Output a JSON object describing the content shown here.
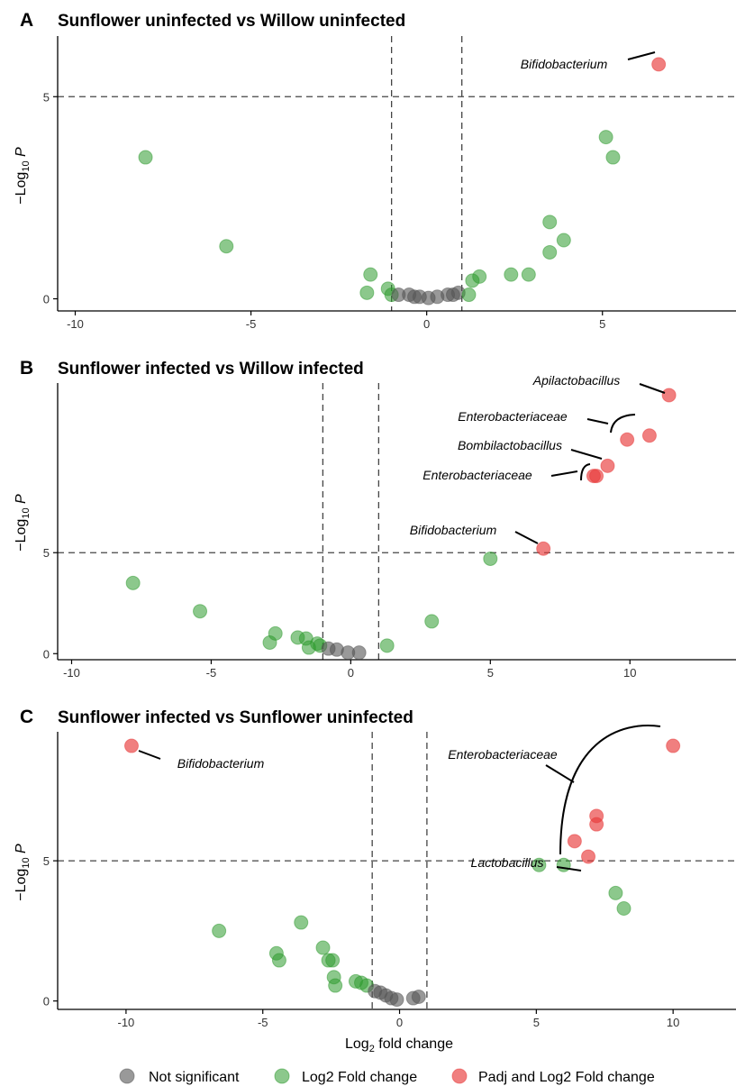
{
  "legend": {
    "items": [
      {
        "key": "ns",
        "label": "Not significant",
        "color": "#555555"
      },
      {
        "key": "fc",
        "label": "Log2 Fold change",
        "color": "#2e9a2e"
      },
      {
        "key": "both",
        "label": "Padj and Log2 Fold change",
        "color": "#e83a3a"
      }
    ]
  },
  "chart_data": [
    {
      "type": "scatter",
      "panel": "A",
      "title": "Sunflower uninfected vs Willow uninfected",
      "ylabel": "−Log10 P",
      "xlabel": "",
      "xlim": [
        -10.5,
        8.8
      ],
      "ylim": [
        -0.3,
        6.5
      ],
      "xticks": [
        -10,
        -5,
        0,
        5
      ],
      "yticks": [
        0,
        5
      ],
      "vlines": [
        -1,
        1
      ],
      "hline": 5,
      "points": [
        {
          "x": -8.0,
          "y": 3.5,
          "g": "fc"
        },
        {
          "x": -5.7,
          "y": 1.3,
          "g": "fc"
        },
        {
          "x": -1.6,
          "y": 0.6,
          "g": "fc"
        },
        {
          "x": -1.7,
          "y": 0.15,
          "g": "fc"
        },
        {
          "x": -1.1,
          "y": 0.25,
          "g": "fc"
        },
        {
          "x": -1.0,
          "y": 0.1,
          "g": "fc"
        },
        {
          "x": -0.8,
          "y": 0.1,
          "g": "ns"
        },
        {
          "x": -0.5,
          "y": 0.1,
          "g": "ns"
        },
        {
          "x": -0.35,
          "y": 0.05,
          "g": "ns"
        },
        {
          "x": -0.2,
          "y": 0.05,
          "g": "ns"
        },
        {
          "x": 0.05,
          "y": 0.02,
          "g": "ns"
        },
        {
          "x": 0.3,
          "y": 0.05,
          "g": "ns"
        },
        {
          "x": 0.6,
          "y": 0.1,
          "g": "ns"
        },
        {
          "x": 0.75,
          "y": 0.1,
          "g": "ns"
        },
        {
          "x": 0.9,
          "y": 0.15,
          "g": "ns"
        },
        {
          "x": 1.2,
          "y": 0.1,
          "g": "fc"
        },
        {
          "x": 1.3,
          "y": 0.45,
          "g": "fc"
        },
        {
          "x": 1.5,
          "y": 0.55,
          "g": "fc"
        },
        {
          "x": 2.4,
          "y": 0.6,
          "g": "fc"
        },
        {
          "x": 2.9,
          "y": 0.6,
          "g": "fc"
        },
        {
          "x": 3.5,
          "y": 1.15,
          "g": "fc"
        },
        {
          "x": 3.5,
          "y": 1.9,
          "g": "fc"
        },
        {
          "x": 3.9,
          "y": 1.45,
          "g": "fc"
        },
        {
          "x": 5.1,
          "y": 4.0,
          "g": "fc"
        },
        {
          "x": 5.3,
          "y": 3.5,
          "g": "fc"
        },
        {
          "x": 6.6,
          "y": 5.8,
          "g": "both"
        }
      ],
      "annotations": [
        {
          "label": "Bifidobacterium",
          "x": 6.6,
          "y": 5.8
        }
      ]
    },
    {
      "type": "scatter",
      "panel": "B",
      "title": "Sunflower infected vs Willow infected",
      "ylabel": "−Log10 P",
      "xlabel": "",
      "xlim": [
        -10.5,
        13.8
      ],
      "ylim": [
        -0.3,
        13.4
      ],
      "xticks": [
        -10,
        -5,
        0,
        5,
        10
      ],
      "yticks": [
        0,
        5
      ],
      "vlines": [
        -1,
        1
      ],
      "hline": 5,
      "points": [
        {
          "x": -7.8,
          "y": 3.5,
          "g": "fc"
        },
        {
          "x": -5.4,
          "y": 2.1,
          "g": "fc"
        },
        {
          "x": -2.9,
          "y": 0.55,
          "g": "fc"
        },
        {
          "x": -2.7,
          "y": 1.0,
          "g": "fc"
        },
        {
          "x": -1.9,
          "y": 0.8,
          "g": "fc"
        },
        {
          "x": -1.6,
          "y": 0.75,
          "g": "fc"
        },
        {
          "x": -1.5,
          "y": 0.3,
          "g": "fc"
        },
        {
          "x": -1.2,
          "y": 0.5,
          "g": "fc"
        },
        {
          "x": -1.1,
          "y": 0.4,
          "g": "fc"
        },
        {
          "x": -0.8,
          "y": 0.25,
          "g": "ns"
        },
        {
          "x": -0.5,
          "y": 0.2,
          "g": "ns"
        },
        {
          "x": -0.1,
          "y": 0.05,
          "g": "ns"
        },
        {
          "x": 0.3,
          "y": 0.05,
          "g": "ns"
        },
        {
          "x": 1.3,
          "y": 0.4,
          "g": "fc"
        },
        {
          "x": 2.9,
          "y": 1.6,
          "g": "fc"
        },
        {
          "x": 5.0,
          "y": 4.7,
          "g": "fc"
        },
        {
          "x": 6.9,
          "y": 5.2,
          "g": "both"
        },
        {
          "x": 8.7,
          "y": 8.8,
          "g": "both"
        },
        {
          "x": 8.8,
          "y": 8.8,
          "g": "both"
        },
        {
          "x": 9.2,
          "y": 9.3,
          "g": "both"
        },
        {
          "x": 9.9,
          "y": 10.6,
          "g": "both"
        },
        {
          "x": 10.7,
          "y": 10.8,
          "g": "both"
        },
        {
          "x": 11.4,
          "y": 12.8,
          "g": "both"
        }
      ],
      "annotations": [
        {
          "label": "Apilactobacillus",
          "x": 11.4,
          "y": 12.8
        },
        {
          "label": "Enterobacteriaceae",
          "x": 10.3,
          "y": 10.7
        },
        {
          "label": "Bombilactobacillus",
          "x": 9.2,
          "y": 9.3
        },
        {
          "label": "Enterobacteriaceae",
          "x": 8.75,
          "y": 8.8
        },
        {
          "label": "Bifidobacterium",
          "x": 6.9,
          "y": 5.2
        }
      ]
    },
    {
      "type": "scatter",
      "panel": "C",
      "title": "Sunflower infected vs Sunflower uninfected",
      "ylabel": "−Log10 P",
      "xlabel": "Log2 fold change",
      "xlim": [
        -12.5,
        12.3
      ],
      "ylim": [
        -0.3,
        9.6
      ],
      "xticks": [
        -10,
        -5,
        0,
        5,
        10
      ],
      "yticks": [
        0,
        5
      ],
      "vlines": [
        -1,
        1
      ],
      "hline": 5,
      "points": [
        {
          "x": -6.6,
          "y": 2.5,
          "g": "fc"
        },
        {
          "x": -4.5,
          "y": 1.7,
          "g": "fc"
        },
        {
          "x": -4.4,
          "y": 1.45,
          "g": "fc"
        },
        {
          "x": -3.6,
          "y": 2.8,
          "g": "fc"
        },
        {
          "x": -2.8,
          "y": 1.9,
          "g": "fc"
        },
        {
          "x": -2.6,
          "y": 1.45,
          "g": "fc"
        },
        {
          "x": -2.45,
          "y": 1.45,
          "g": "fc"
        },
        {
          "x": -2.4,
          "y": 0.85,
          "g": "fc"
        },
        {
          "x": -2.35,
          "y": 0.55,
          "g": "fc"
        },
        {
          "x": -1.6,
          "y": 0.7,
          "g": "fc"
        },
        {
          "x": -1.4,
          "y": 0.65,
          "g": "fc"
        },
        {
          "x": -1.2,
          "y": 0.55,
          "g": "fc"
        },
        {
          "x": -0.9,
          "y": 0.35,
          "g": "ns"
        },
        {
          "x": -0.7,
          "y": 0.3,
          "g": "ns"
        },
        {
          "x": -0.5,
          "y": 0.2,
          "g": "ns"
        },
        {
          "x": -0.3,
          "y": 0.1,
          "g": "ns"
        },
        {
          "x": -0.1,
          "y": 0.05,
          "g": "ns"
        },
        {
          "x": 0.5,
          "y": 0.1,
          "g": "ns"
        },
        {
          "x": 0.7,
          "y": 0.15,
          "g": "ns"
        },
        {
          "x": 5.1,
          "y": 4.85,
          "g": "fc"
        },
        {
          "x": 6.0,
          "y": 4.85,
          "g": "fc"
        },
        {
          "x": 7.9,
          "y": 3.85,
          "g": "fc"
        },
        {
          "x": 8.2,
          "y": 3.3,
          "g": "fc"
        },
        {
          "x": 6.4,
          "y": 5.7,
          "g": "both"
        },
        {
          "x": 6.9,
          "y": 5.15,
          "g": "both"
        },
        {
          "x": 7.2,
          "y": 6.3,
          "g": "both"
        },
        {
          "x": 7.2,
          "y": 6.6,
          "g": "both"
        },
        {
          "x": 10.0,
          "y": 9.1,
          "g": "both"
        },
        {
          "x": -9.8,
          "y": 9.1,
          "g": "both"
        }
      ],
      "annotations": [
        {
          "label": "Bifidobacterium",
          "x": -9.8,
          "y": 9.1
        },
        {
          "label": "Enterobacteriaceae",
          "x": 10.0,
          "y": 9.1
        },
        {
          "label": "Lactobacillus",
          "x": 6.9,
          "y": 5.15
        }
      ]
    }
  ]
}
